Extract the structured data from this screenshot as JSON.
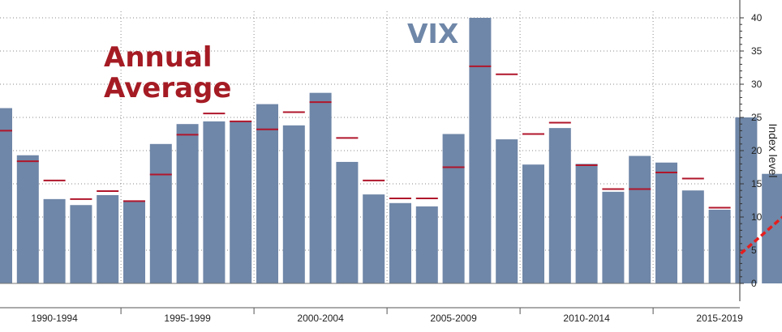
{
  "chart_data": {
    "type": "bar",
    "title": "VIX",
    "annotation": "Annual Average",
    "ylabel": "Index level",
    "ylim": [
      0,
      40
    ],
    "y_ticks": [
      0,
      5,
      10,
      15,
      20,
      25,
      30,
      35,
      40
    ],
    "y_axis_side": "right",
    "grid": "dotted",
    "x": [
      1990,
      1991,
      1992,
      1993,
      1994,
      1995,
      1996,
      1997,
      1998,
      1999,
      2000,
      2001,
      2002,
      2003,
      2004,
      2005,
      2006,
      2007,
      2008,
      2009,
      2010,
      2011,
      2012,
      2013,
      2014,
      2015,
      2016,
      2017,
      2018,
      2019
    ],
    "series": [
      {
        "type": "bar",
        "color": "#6f87a8",
        "values": [
          26.4,
          19.3,
          12.7,
          11.8,
          13.3,
          12.5,
          21.0,
          24.0,
          24.4,
          24.5,
          27.0,
          23.8,
          28.7,
          18.3,
          13.4,
          12.1,
          11.6,
          22.5,
          40.0,
          21.7,
          17.9,
          23.4,
          18.0,
          13.8,
          19.2,
          18.2,
          14.0,
          11.1,
          25.0,
          16.5
        ]
      },
      {
        "type": "marker",
        "color": "#b0162b",
        "values": [
          23.0,
          18.4,
          15.5,
          12.7,
          13.9,
          12.4,
          16.4,
          22.4,
          25.6,
          24.4,
          23.2,
          25.8,
          27.3,
          21.9,
          15.5,
          12.8,
          12.8,
          17.5,
          32.7,
          31.5,
          22.5,
          24.2,
          17.8,
          14.2,
          14.2,
          16.7,
          15.8,
          11.4,
          null,
          null
        ]
      }
    ],
    "x_range_labels": [
      "1990-1994",
      "1995-1999",
      "2000-2004",
      "2005-2009",
      "2010-2014",
      "2015-2019"
    ],
    "trend_arrow": {
      "from_x": 2017.8,
      "from_y": 4.5,
      "to_x": 2019.8,
      "to_y": 11.5,
      "color": "#e61e1e"
    }
  }
}
